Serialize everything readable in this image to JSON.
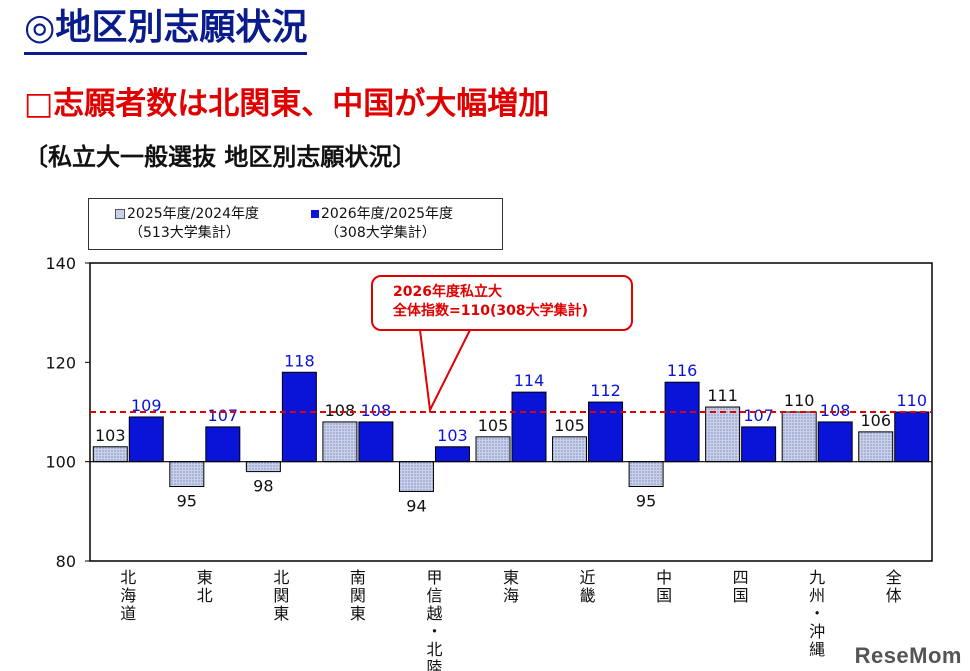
{
  "page": {
    "title": "◎地区別志願状況",
    "subtitle": "□志願者数は北関東、中国が大幅増加",
    "caption": "〔私立大一般選抜 地区別志願状況〕",
    "watermark": "ReseMom"
  },
  "legend": {
    "series_a_label": "2025年度/2024年度",
    "series_a_sub": "（513大学集計）",
    "series_b_label": "2026年度/2025年度",
    "series_b_sub": "（308大学集計）"
  },
  "annotation": {
    "line1": "2026年度私立大",
    "line2": "全体指数=110(308大学集計)"
  },
  "chart_data": {
    "type": "bar",
    "categories": [
      "北海道",
      "東北",
      "北関東",
      "南関東",
      "甲信越・北陸",
      "東海",
      "近畿",
      "中国",
      "四国",
      "九州・沖縄",
      "全体"
    ],
    "series": [
      {
        "name": "2025年度/2024年度（513大学集計）",
        "values": [
          103,
          95,
          98,
          108,
          94,
          105,
          105,
          95,
          111,
          110,
          106
        ],
        "color": "#c8d0ea"
      },
      {
        "name": "2026年度/2025年度（308大学集計）",
        "values": [
          109,
          107,
          118,
          108,
          103,
          114,
          112,
          116,
          107,
          108,
          110
        ],
        "color": "#0a14d8"
      }
    ],
    "baseline": 100,
    "reference_line": 110,
    "ylim": [
      80,
      140
    ],
    "yticks": [
      80,
      100,
      120,
      140
    ],
    "grid": false,
    "legend_position": "top-left"
  }
}
